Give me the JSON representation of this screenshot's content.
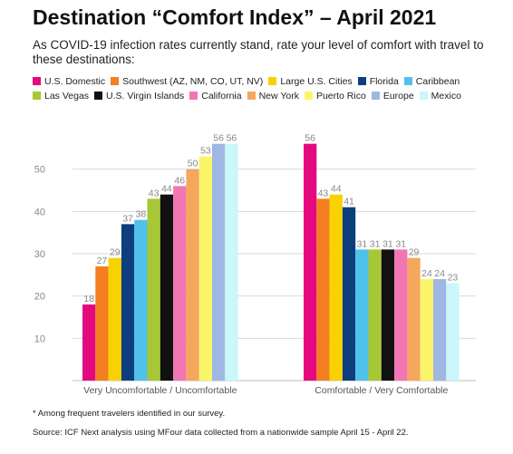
{
  "header": {
    "title": "Destination “Comfort Index” – April 2021",
    "subtitle": "As COVID-19 infection rates currently stand, rate your level of comfort with travel to these destinations:"
  },
  "footnote": "* Among frequent travelers identified in our survey.",
  "source": "Source: ICF Next analysis using MFour data collected from a nationwide sample April 15 - April 22.",
  "chart_data": {
    "type": "bar",
    "title": "Destination “Comfort Index” – April 2021",
    "categories": [
      "Very Uncomfortable / Uncomfortable",
      "Comfortable / Very Comfortable"
    ],
    "ylim": [
      0,
      60
    ],
    "yticks": [
      10,
      20,
      30,
      40,
      50
    ],
    "grid": true,
    "legend_position": "top",
    "series": [
      {
        "name": "U.S. Domestic",
        "color": "#e5097f",
        "values": [
          18,
          56
        ]
      },
      {
        "name": "Southwest (AZ, NM, CO, UT, NV)",
        "color": "#f37f21",
        "values": [
          27,
          43
        ]
      },
      {
        "name": "Large U.S. Cities",
        "color": "#f8d200",
        "values": [
          29,
          44
        ]
      },
      {
        "name": "Florida",
        "color": "#0d3f7f",
        "values": [
          37,
          41
        ]
      },
      {
        "name": "Caribbean",
        "color": "#4fc1ea",
        "values": [
          38,
          31
        ]
      },
      {
        "name": "Las Vegas",
        "color": "#a8c736",
        "values": [
          43,
          31
        ]
      },
      {
        "name": "U.S. Virgin Islands",
        "color": "#111111",
        "values": [
          44,
          31
        ]
      },
      {
        "name": "California",
        "color": "#f276b4",
        "values": [
          46,
          31
        ]
      },
      {
        "name": "New York",
        "color": "#f6a75e",
        "values": [
          50,
          29
        ]
      },
      {
        "name": "Puerto Rico",
        "color": "#fbf56a",
        "values": [
          53,
          24
        ]
      },
      {
        "name": "Europe",
        "color": "#9fb7e3",
        "values": [
          56,
          24
        ]
      },
      {
        "name": "Mexico",
        "color": "#c9f7fb",
        "values": [
          56,
          23
        ]
      }
    ]
  }
}
